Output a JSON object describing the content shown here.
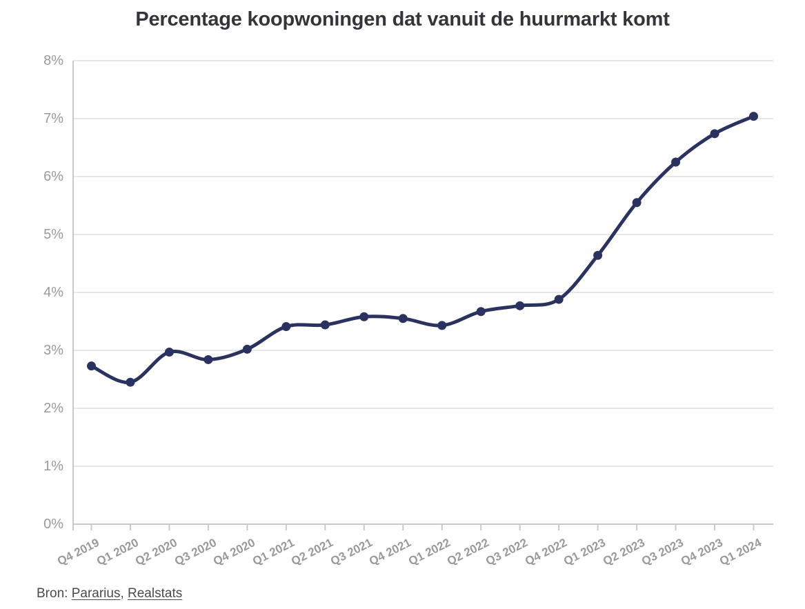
{
  "title": "Percentage koopwoningen dat vanuit de huurmarkt komt",
  "source": {
    "prefix": "Bron: ",
    "links": [
      "Pararius",
      "Realstats"
    ],
    "separator": ", "
  },
  "colors": {
    "line": "#2a335f",
    "point": "#2a335f",
    "grid": "#e8e8e8",
    "axis": "#c9c9c9",
    "tick_label": "#9a9a9a",
    "title": "#35343a",
    "source_text": "#4a4a4a"
  },
  "chart_data": {
    "type": "line",
    "title": "Percentage koopwoningen dat vanuit de huurmarkt komt",
    "categories": [
      "Q4 2019",
      "Q1 2020",
      "Q2 2020",
      "Q3 2020",
      "Q4 2020",
      "Q1 2021",
      "Q2 2021",
      "Q3 2021",
      "Q4 2021",
      "Q1 2022",
      "Q2 2022",
      "Q3 2022",
      "Q4 2022",
      "Q1 2023",
      "Q2 2023",
      "Q3 2023",
      "Q4 2023",
      "Q1 2024"
    ],
    "values": [
      2.73,
      2.45,
      2.97,
      2.84,
      3.02,
      3.41,
      3.44,
      3.58,
      3.55,
      3.43,
      3.67,
      3.77,
      3.88,
      4.64,
      5.55,
      6.25,
      6.74,
      7.04
    ],
    "xlabel": "",
    "ylabel": "",
    "ylim": [
      0,
      8
    ],
    "ytick_step": 1,
    "ytick_suffix": "%",
    "grid": true,
    "legend": false
  }
}
